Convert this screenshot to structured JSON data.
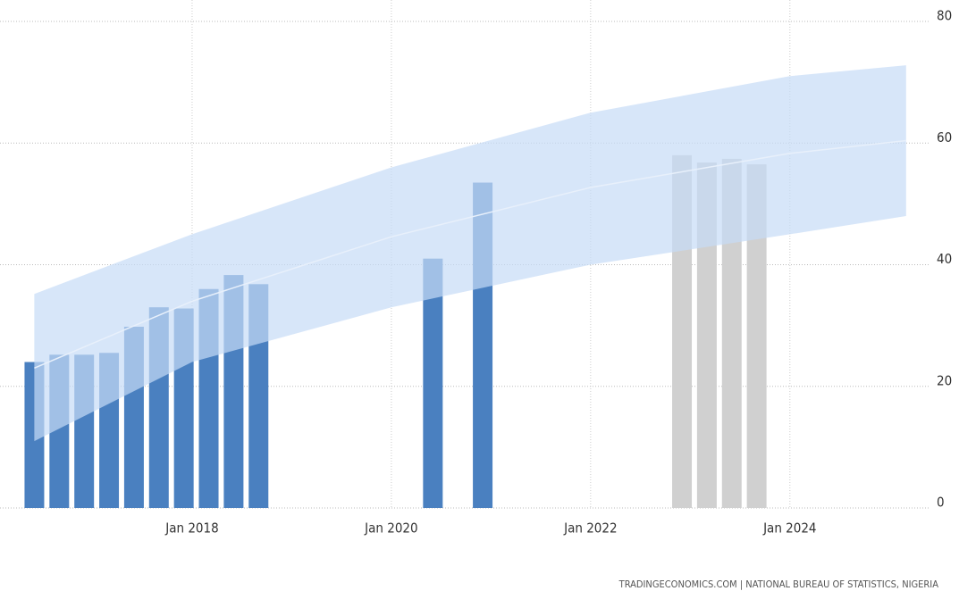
{
  "chart_data": {
    "type": "bar",
    "xlim": [
      "2016-01",
      "2025-07"
    ],
    "ylim": [
      0,
      80
    ],
    "yticks": [
      0,
      20,
      40,
      60,
      80
    ],
    "xticks": [
      {
        "value": "2018-01",
        "label": "Jan 2018"
      },
      {
        "value": "2020-01",
        "label": "Jan 2020"
      },
      {
        "value": "2022-01",
        "label": "Jan 2022"
      },
      {
        "value": "2024-01",
        "label": "Jan 2024"
      }
    ],
    "grid": true,
    "series": [
      {
        "color": "#4a80c0",
        "x": [
          "2016-06",
          "2016-09",
          "2016-12",
          "2017-03",
          "2017-06",
          "2017-09",
          "2017-12",
          "2018-03",
          "2018-06",
          "2018-09",
          "2020-06",
          "2020-12"
        ],
        "values": [
          24,
          25.2,
          25.2,
          25.5,
          29.8,
          33,
          32.8,
          36,
          38.3,
          36.8,
          41,
          53.5
        ]
      },
      {
        "color": "#d0d0d0",
        "x": [
          "2022-12",
          "2023-03",
          "2023-06",
          "2023-09"
        ],
        "values": [
          58,
          56.8,
          57.4,
          56.5
        ]
      }
    ],
    "band": {
      "color": "#c6dbf6",
      "x": [
        "2016-06",
        "2018-01",
        "2020-01",
        "2022-01",
        "2024-01",
        "2025-03"
      ],
      "upper": [
        35.2,
        45,
        56,
        65,
        71,
        72.8
      ],
      "lower": [
        11,
        24,
        33,
        40,
        45,
        48
      ],
      "trend": [
        23,
        34,
        44.6,
        52.7,
        58.3,
        60.4
      ]
    },
    "source": "TRADINGECONOMICS.COM | NATIONAL BUREAU OF STATISTICS, NIGERIA"
  }
}
